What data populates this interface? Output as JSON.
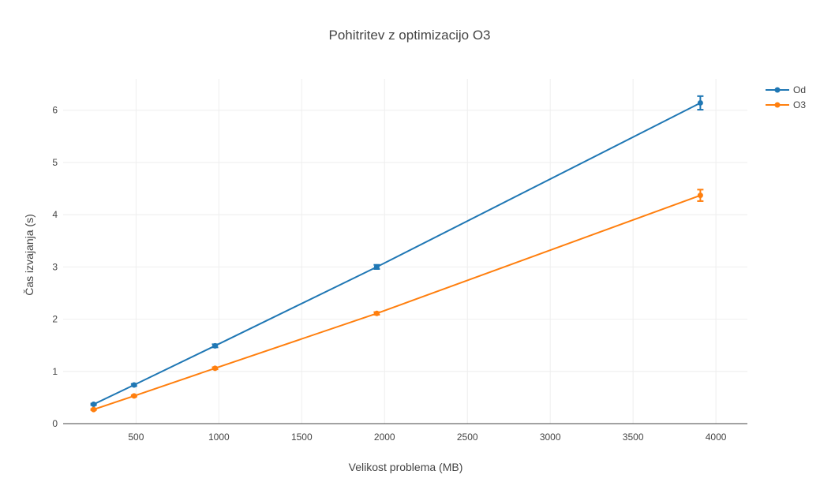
{
  "chart_data": {
    "type": "line",
    "title": "Pohitritev z optimizacijo O3",
    "xlabel": "Velikost problema (MB)",
    "ylabel": "Čas izvajanja (s)",
    "xlim": [
      60,
      4190
    ],
    "ylim": [
      0,
      6.6
    ],
    "x_ticks": [
      500,
      1000,
      1500,
      2000,
      2500,
      3000,
      3500,
      4000
    ],
    "y_ticks": [
      0,
      1,
      2,
      3,
      4,
      5,
      6
    ],
    "grid": true,
    "legend_position": "top-right",
    "series": [
      {
        "name": "Od",
        "color": "#1f77b4",
        "points": [
          {
            "x": 244,
            "y": 0.37,
            "err": 0.015
          },
          {
            "x": 488,
            "y": 0.74,
            "err": 0.02
          },
          {
            "x": 977,
            "y": 1.49,
            "err": 0.03
          },
          {
            "x": 1953,
            "y": 3.0,
            "err": 0.04
          },
          {
            "x": 3906,
            "y": 6.14,
            "err": 0.13
          }
        ]
      },
      {
        "name": "O3",
        "color": "#ff7f0e",
        "points": [
          {
            "x": 244,
            "y": 0.27,
            "err": 0.01
          },
          {
            "x": 488,
            "y": 0.53,
            "err": 0.015
          },
          {
            "x": 977,
            "y": 1.06,
            "err": 0.02
          },
          {
            "x": 1953,
            "y": 2.11,
            "err": 0.025
          },
          {
            "x": 3906,
            "y": 4.37,
            "err": 0.11
          }
        ]
      }
    ]
  }
}
